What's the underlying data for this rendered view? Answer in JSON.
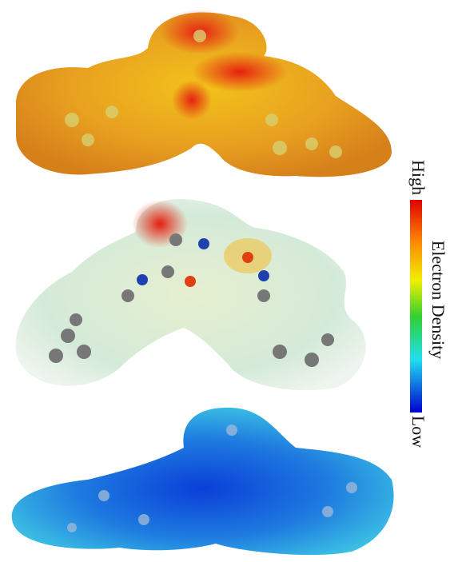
{
  "colorbar": {
    "high_label": "High",
    "title": "Electron Density",
    "low_label": "Low"
  }
}
